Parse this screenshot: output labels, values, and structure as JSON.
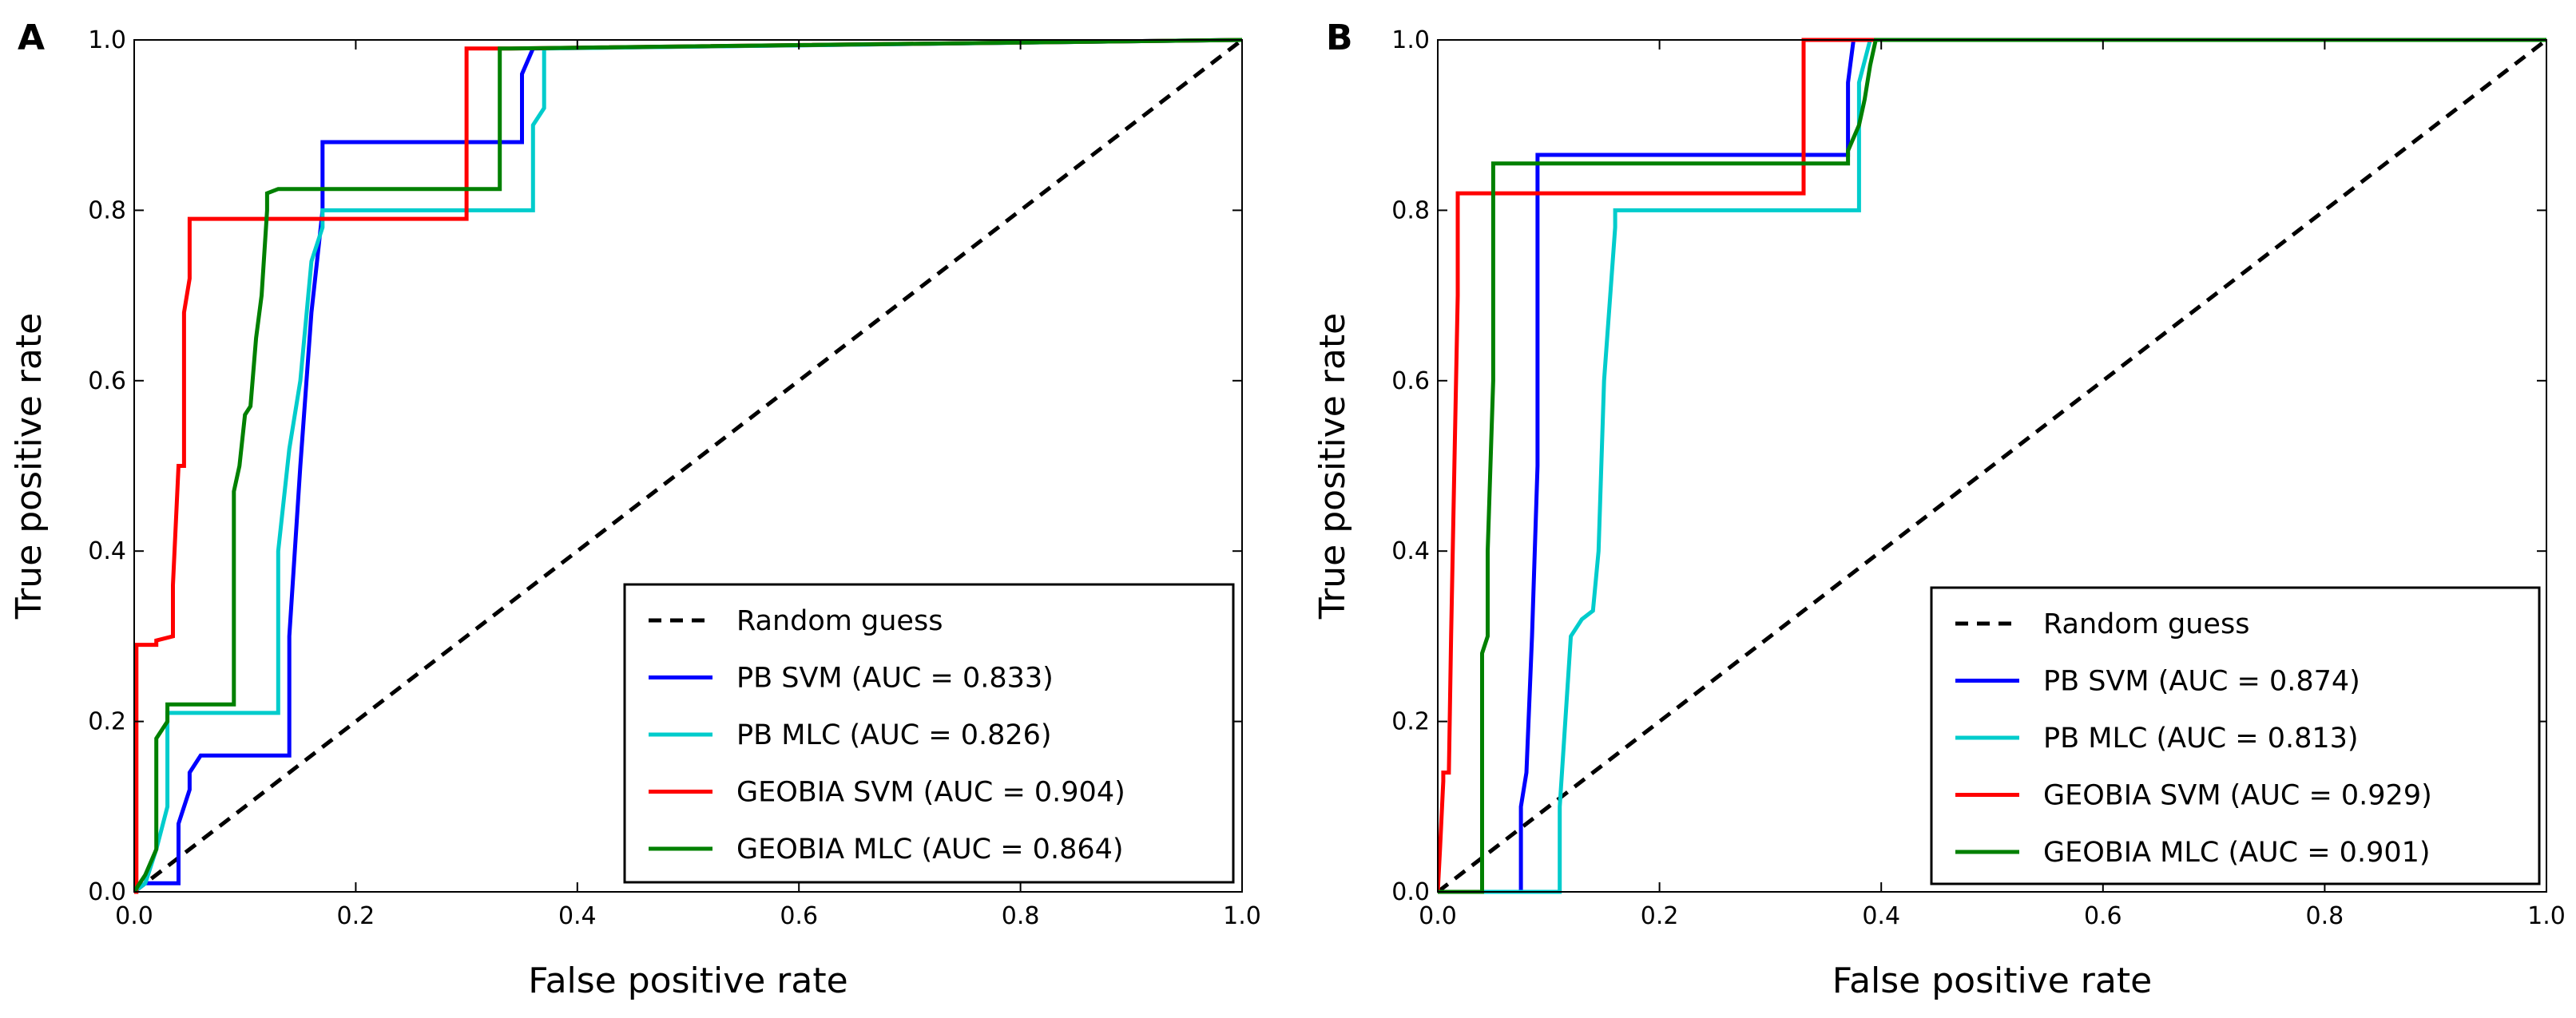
{
  "chart_data": [
    {
      "type": "line",
      "panel": "A",
      "xlabel": "False positive rate",
      "ylabel": "True positive rate",
      "xlim": [
        0,
        1
      ],
      "ylim": [
        0,
        1
      ],
      "xticks": [
        "0.0",
        "0.2",
        "0.4",
        "0.6",
        "0.8",
        "1.0"
      ],
      "yticks": [
        "0.0",
        "0.2",
        "0.4",
        "0.6",
        "0.8",
        "1.0"
      ],
      "grid": false,
      "legend_position": "lower-right",
      "series": [
        {
          "name": "Random guess",
          "color": "#000000",
          "style": "dashed",
          "x": [
            0,
            1
          ],
          "y": [
            0,
            1
          ]
        },
        {
          "name": "PB SVM (AUC = 0.833)",
          "color": "#0000ff",
          "style": "solid",
          "x": [
            0,
            0.01,
            0.04,
            0.04,
            0.05,
            0.05,
            0.06,
            0.06,
            0.14,
            0.14,
            0.15,
            0.16,
            0.165,
            0.17,
            0.17,
            0.35,
            0.35,
            0.36,
            0.36,
            1.0
          ],
          "y": [
            0,
            0.01,
            0.01,
            0.08,
            0.12,
            0.14,
            0.16,
            0.16,
            0.16,
            0.3,
            0.5,
            0.68,
            0.74,
            0.8,
            0.88,
            0.88,
            0.96,
            0.99,
            0.99,
            1.0
          ]
        },
        {
          "name": "PB MLC (AUC = 0.826)",
          "color": "#00cccc",
          "style": "solid",
          "x": [
            0,
            0.01,
            0.02,
            0.03,
            0.03,
            0.06,
            0.13,
            0.13,
            0.14,
            0.15,
            0.16,
            0.17,
            0.17,
            0.36,
            0.36,
            0.37,
            0.37,
            1.0
          ],
          "y": [
            0,
            0.01,
            0.05,
            0.1,
            0.21,
            0.21,
            0.21,
            0.4,
            0.52,
            0.6,
            0.74,
            0.78,
            0.8,
            0.8,
            0.9,
            0.92,
            0.99,
            1.0
          ]
        },
        {
          "name": "GEOBIA SVM (AUC = 0.904)",
          "color": "#ff0000",
          "style": "solid",
          "x": [
            0,
            0.002,
            0.002,
            0.02,
            0.02,
            0.035,
            0.035,
            0.04,
            0.045,
            0.045,
            0.05,
            0.05,
            0.3,
            0.3,
            0.34,
            1.0
          ],
          "y": [
            0,
            0.0,
            0.29,
            0.29,
            0.295,
            0.3,
            0.36,
            0.5,
            0.5,
            0.68,
            0.72,
            0.79,
            0.79,
            0.99,
            0.99,
            1.0
          ]
        },
        {
          "name": "GEOBIA MLC (AUC = 0.864)",
          "color": "#008000",
          "style": "solid",
          "x": [
            0,
            0.01,
            0.02,
            0.02,
            0.03,
            0.03,
            0.09,
            0.09,
            0.095,
            0.1,
            0.105,
            0.11,
            0.115,
            0.12,
            0.12,
            0.13,
            0.33,
            0.33,
            0.34,
            1.0
          ],
          "y": [
            0,
            0.02,
            0.05,
            0.18,
            0.2,
            0.22,
            0.22,
            0.47,
            0.5,
            0.56,
            0.57,
            0.65,
            0.7,
            0.8,
            0.82,
            0.825,
            0.825,
            0.99,
            0.99,
            1.0
          ]
        }
      ]
    },
    {
      "type": "line",
      "panel": "B",
      "xlabel": "False positive rate",
      "ylabel": "True positive rate",
      "xlim": [
        0,
        1
      ],
      "ylim": [
        0,
        1
      ],
      "xticks": [
        "0.0",
        "0.2",
        "0.4",
        "0.6",
        "0.8",
        "1.0"
      ],
      "yticks": [
        "0.0",
        "0.2",
        "0.4",
        "0.6",
        "0.8",
        "1.0"
      ],
      "grid": false,
      "legend_position": "lower-right",
      "series": [
        {
          "name": "Random guess",
          "color": "#000000",
          "style": "dashed",
          "x": [
            0,
            1
          ],
          "y": [
            0,
            1
          ]
        },
        {
          "name": "PB SVM (AUC = 0.874)",
          "color": "#0000ff",
          "style": "solid",
          "x": [
            0,
            0.075,
            0.075,
            0.08,
            0.08,
            0.085,
            0.09,
            0.09,
            0.37,
            0.37,
            0.375,
            1.0
          ],
          "y": [
            0,
            0.0,
            0.1,
            0.14,
            0.14,
            0.3,
            0.5,
            0.865,
            0.865,
            0.95,
            1.0,
            1.0
          ]
        },
        {
          "name": "PB MLC (AUC = 0.813)",
          "color": "#00cccc",
          "style": "solid",
          "x": [
            0,
            0.11,
            0.11,
            0.12,
            0.13,
            0.14,
            0.145,
            0.15,
            0.16,
            0.16,
            0.38,
            0.38,
            0.39,
            1.0
          ],
          "y": [
            0,
            0.0,
            0.1,
            0.3,
            0.32,
            0.33,
            0.4,
            0.6,
            0.78,
            0.8,
            0.8,
            0.95,
            1.0,
            1.0
          ]
        },
        {
          "name": "GEOBIA SVM (AUC = 0.929)",
          "color": "#ff0000",
          "style": "solid",
          "x": [
            0,
            0.002,
            0.005,
            0.005,
            0.01,
            0.012,
            0.015,
            0.018,
            0.018,
            0.33,
            0.33,
            1.0
          ],
          "y": [
            0,
            0.05,
            0.13,
            0.14,
            0.14,
            0.3,
            0.5,
            0.7,
            0.82,
            0.82,
            1.0,
            1.0
          ]
        },
        {
          "name": "GEOBIA MLC (AUC = 0.901)",
          "color": "#008000",
          "style": "solid",
          "x": [
            0,
            0.04,
            0.04,
            0.045,
            0.045,
            0.05,
            0.05,
            0.37,
            0.37,
            0.38,
            0.385,
            0.39,
            0.395,
            1.0
          ],
          "y": [
            0,
            0.0,
            0.28,
            0.3,
            0.4,
            0.6,
            0.855,
            0.855,
            0.87,
            0.9,
            0.93,
            0.97,
            1.0,
            1.0
          ]
        }
      ]
    }
  ]
}
